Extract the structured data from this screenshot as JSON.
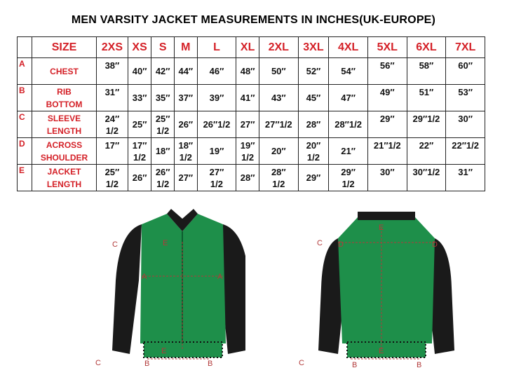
{
  "title": "MEN VARSITY JACKET MEASUREMENTS IN INCHES(UK-EUROPE)",
  "table": {
    "size_header": "SIZE",
    "sizes": [
      "2XS",
      "XS",
      "S",
      "M",
      "L",
      "XL",
      "2XL",
      "3XL",
      "4XL",
      "5XL",
      "6XL",
      "7XL"
    ],
    "rows": [
      {
        "letter": "A",
        "label": "CHEST",
        "values": [
          "38″",
          "40″",
          "42″",
          "44″",
          "46″",
          "48″",
          "50″",
          "52″",
          "54″",
          "56″",
          "58″",
          "60″"
        ]
      },
      {
        "letter": "B",
        "label": "RIB\nBOTTOM",
        "values": [
          "31″",
          "33″",
          "35″",
          "37″",
          "39″",
          "41″",
          "43″",
          "45″",
          "47″",
          "49″",
          "51″",
          "53″"
        ]
      },
      {
        "letter": "C",
        "label": "SLEEVE\nLENGTH",
        "values": [
          "24″\n1/2",
          "25″",
          "25″\n1/2",
          "26″",
          "26″1/2",
          "27″",
          "27″1/2",
          "28″",
          "28″1/2",
          "29″",
          "29″1/2",
          "30″"
        ]
      },
      {
        "letter": "D",
        "label": "ACROSS\nSHOULDER",
        "values": [
          "17″",
          "17″\n1/2",
          "18″",
          "18″\n1/2",
          "19″",
          "19″\n1/2",
          "20″",
          "20″\n1/2",
          "21″",
          "21″1/2",
          "22″",
          "22″1/2"
        ]
      },
      {
        "letter": "E",
        "label": "JACKET\nLENGTH",
        "values": [
          "25″\n1/2",
          "26″",
          "26″\n1/2",
          "27″",
          "27″\n1/2",
          "28″",
          "28″\n1/2",
          "29″",
          "29″\n1/2",
          "30″",
          "30″1/2",
          "31″"
        ]
      }
    ]
  },
  "front_labels": {
    "a": "A",
    "b": "B",
    "c": "C",
    "e": "E"
  },
  "back_labels": {
    "b": "B",
    "c": "C",
    "d": "D",
    "e": "E"
  },
  "colors": {
    "header_red": "#d42027",
    "jacket_green": "#1e8f4a",
    "sleeve_black": "#1a1a1a"
  }
}
